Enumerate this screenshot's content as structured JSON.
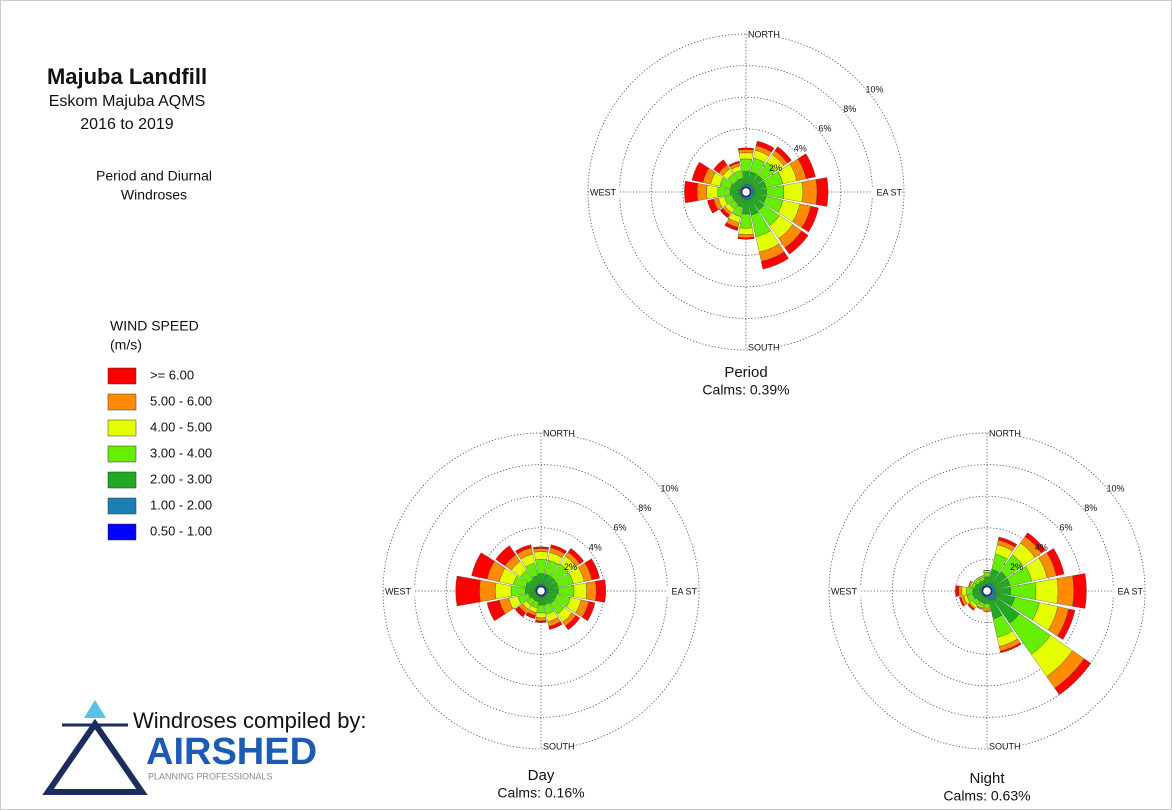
{
  "header": {
    "title": "Majuba Landfill",
    "subtitle": "Eskom Majuba AQMS",
    "period": "2016 to 2019",
    "description": [
      "Period and Diurnal",
      "Windroses"
    ]
  },
  "legend": {
    "title": [
      "WIND SPEED",
      "(m/s)"
    ]
  },
  "credit": {
    "text": "Windroses compiled by:",
    "logo": "AIRSHED",
    "tagline": "PLANNING PROFESSIONALS"
  },
  "chart_data": [
    {
      "type": "windrose",
      "caption": "Period",
      "calms": "Calms: 0.39%",
      "directions": [
        "NORTH",
        "EA ST",
        "SOUTH",
        "WEST"
      ],
      "rlim": [
        0,
        10
      ],
      "rticks": [
        {
          "value": 2,
          "label": "2%"
        },
        {
          "value": 4,
          "label": "4%"
        },
        {
          "value": 6,
          "label": "6%"
        },
        {
          "value": 8,
          "label": "8%"
        },
        {
          "value": 10,
          "label": "10%"
        }
      ],
      "series": [
        {
          "name": ">= 6.00",
          "color": "#ff0000",
          "values": [
            0.1,
            0.3,
            0.3,
            0.6,
            0.7,
            0.5,
            0.5,
            0.5,
            0.1,
            0.2,
            0.2,
            0.4,
            0.8,
            0.7,
            0.4,
            0.1
          ]
        },
        {
          "name": "5.00 - 6.00",
          "color": "#ff8c00",
          "values": [
            0.2,
            0.3,
            0.3,
            0.6,
            0.9,
            0.7,
            0.7,
            0.6,
            0.2,
            0.3,
            0.2,
            0.3,
            0.6,
            0.5,
            0.3,
            0.2
          ]
        },
        {
          "name": "4.00 - 5.00",
          "color": "#e6ff00",
          "values": [
            0.4,
            0.5,
            0.6,
            0.9,
            1.2,
            1.1,
            1.0,
            1.0,
            0.4,
            0.4,
            0.3,
            0.4,
            0.7,
            0.6,
            0.4,
            0.3
          ]
        },
        {
          "name": "3.00 - 4.00",
          "color": "#66ee00",
          "values": [
            0.8,
            0.9,
            1.0,
            1.1,
            1.1,
            1.1,
            1.2,
            1.4,
            0.9,
            0.6,
            0.4,
            0.5,
            0.8,
            0.7,
            0.5,
            0.5
          ]
        },
        {
          "name": "2.00 - 3.00",
          "color": "#1faa1f",
          "values": [
            0.8,
            0.8,
            0.8,
            0.8,
            0.8,
            0.8,
            0.9,
            1.0,
            0.9,
            0.6,
            0.5,
            0.5,
            0.6,
            0.6,
            0.5,
            0.5
          ]
        },
        {
          "name": "1.00 - 2.00",
          "color": "#1a7fb5",
          "values": [
            0.4,
            0.4,
            0.4,
            0.4,
            0.4,
            0.4,
            0.4,
            0.4,
            0.4,
            0.3,
            0.3,
            0.3,
            0.3,
            0.3,
            0.3,
            0.3
          ]
        },
        {
          "name": "0.50 - 1.00",
          "color": "#0000ff",
          "values": [
            0.1,
            0.1,
            0.1,
            0.1,
            0.1,
            0.1,
            0.1,
            0.1,
            0.1,
            0.1,
            0.1,
            0.1,
            0.1,
            0.1,
            0.1,
            0.1
          ]
        }
      ]
    },
    {
      "type": "windrose",
      "caption": "Day",
      "calms": "Calms: 0.16%",
      "directions": [
        "NORTH",
        "EA ST",
        "SOUTH",
        "WEST"
      ],
      "rlim": [
        0,
        10
      ],
      "rticks": [
        {
          "value": 2,
          "label": "2%"
        },
        {
          "value": 4,
          "label": "4%"
        },
        {
          "value": 6,
          "label": "6%"
        },
        {
          "value": 8,
          "label": "8%"
        },
        {
          "value": 10,
          "label": "10%"
        }
      ],
      "series": [
        {
          "values": [
            0.1,
            0.2,
            0.3,
            0.5,
            0.6,
            0.4,
            0.3,
            0.2,
            0.1,
            0.2,
            0.3,
            0.8,
            1.5,
            1.0,
            0.7,
            0.2
          ]
        },
        {
          "values": [
            0.2,
            0.3,
            0.3,
            0.5,
            0.6,
            0.5,
            0.3,
            0.3,
            0.2,
            0.2,
            0.3,
            0.6,
            1.0,
            0.8,
            0.5,
            0.4
          ]
        },
        {
          "values": [
            0.5,
            0.5,
            0.6,
            0.7,
            0.8,
            0.7,
            0.6,
            0.5,
            0.3,
            0.3,
            0.3,
            0.6,
            1.0,
            0.9,
            0.7,
            0.6
          ]
        },
        {
          "values": [
            0.9,
            0.9,
            1.0,
            1.0,
            1.0,
            0.9,
            0.8,
            0.6,
            0.5,
            0.4,
            0.4,
            0.7,
            0.9,
            0.8,
            0.7,
            0.8
          ]
        },
        {
          "values": [
            0.7,
            0.7,
            0.7,
            0.7,
            0.7,
            0.6,
            0.6,
            0.5,
            0.5,
            0.4,
            0.4,
            0.5,
            0.6,
            0.6,
            0.5,
            0.6
          ]
        },
        {
          "values": [
            0.3,
            0.3,
            0.3,
            0.3,
            0.3,
            0.3,
            0.3,
            0.3,
            0.3,
            0.2,
            0.2,
            0.2,
            0.3,
            0.3,
            0.3,
            0.3
          ]
        },
        {
          "values": [
            0.1,
            0.1,
            0.1,
            0.1,
            0.1,
            0.1,
            0.1,
            0.1,
            0.1,
            0.1,
            0.1,
            0.1,
            0.1,
            0.1,
            0.1,
            0.1
          ]
        }
      ]
    },
    {
      "type": "windrose",
      "caption": "Night",
      "calms": "Calms: 0.63%",
      "directions": [
        "NORTH",
        "EA ST",
        "SOUTH",
        "WEST"
      ],
      "rlim": [
        0,
        10
      ],
      "rticks": [
        {
          "value": 2,
          "label": "2%"
        },
        {
          "value": 4,
          "label": "4%"
        },
        {
          "value": 6,
          "label": "6%"
        },
        {
          "value": 8,
          "label": "8%"
        },
        {
          "value": 10,
          "label": "10%"
        }
      ],
      "series": [
        {
          "values": [
            0,
            0.2,
            0.3,
            0.5,
            0.8,
            0.4,
            0.5,
            0.1,
            0,
            0,
            0.1,
            0.1,
            0.2,
            0,
            0,
            0
          ]
        },
        {
          "values": [
            0,
            0.3,
            0.5,
            0.6,
            1.0,
            0.7,
            0.9,
            0.3,
            0.1,
            0.1,
            0.1,
            0.2,
            0.2,
            0.1,
            0,
            0
          ]
        },
        {
          "values": [
            0.1,
            0.6,
            0.9,
            1.0,
            1.4,
            1.2,
            1.7,
            0.6,
            0.1,
            0.1,
            0.2,
            0.2,
            0.3,
            0.1,
            0.1,
            0.1
          ]
        },
        {
          "values": [
            0.3,
            1.0,
            1.3,
            1.4,
            1.6,
            1.6,
            2.4,
            1.2,
            0.3,
            0.2,
            0.3,
            0.4,
            0.4,
            0.2,
            0.2,
            0.2
          ]
        },
        {
          "values": [
            0.5,
            0.9,
            1.0,
            1.0,
            1.0,
            1.2,
            1.8,
            1.2,
            0.4,
            0.4,
            0.4,
            0.5,
            0.5,
            0.4,
            0.3,
            0.3
          ]
        },
        {
          "values": [
            0.3,
            0.4,
            0.4,
            0.4,
            0.4,
            0.5,
            0.6,
            0.5,
            0.3,
            0.3,
            0.3,
            0.3,
            0.3,
            0.3,
            0.3,
            0.3
          ]
        },
        {
          "values": [
            0.1,
            0.1,
            0.1,
            0.1,
            0.1,
            0.1,
            0.1,
            0.1,
            0.1,
            0.1,
            0.1,
            0.1,
            0.1,
            0.1,
            0.1,
            0.1
          ]
        }
      ]
    }
  ]
}
